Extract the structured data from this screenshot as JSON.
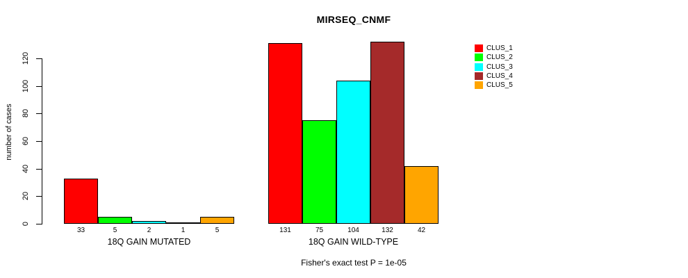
{
  "title": "MIRSEQ_CNMF",
  "chart_data": {
    "type": "bar",
    "title": "MIRSEQ_CNMF",
    "ylabel": "number of cases",
    "xlabel": "",
    "ylim": [
      0,
      132
    ],
    "yticks": [
      0,
      20,
      40,
      60,
      80,
      100,
      120
    ],
    "grid": false,
    "legend_position": "right",
    "series": [
      {
        "name": "CLUS_1",
        "color": "#FF0000",
        "values": [
          33,
          131
        ]
      },
      {
        "name": "CLUS_2",
        "color": "#00FF00",
        "values": [
          5,
          75
        ]
      },
      {
        "name": "CLUS_3",
        "color": "#00FFFF",
        "values": [
          2,
          104
        ]
      },
      {
        "name": "CLUS_4",
        "color": "#A52A2A",
        "values": [
          1,
          132
        ]
      },
      {
        "name": "CLUS_5",
        "color": "#FFA500",
        "values": [
          5,
          42
        ]
      }
    ],
    "groups": [
      {
        "label": "18Q GAIN MUTATED",
        "values": [
          33,
          5,
          2,
          1,
          5
        ]
      },
      {
        "label": "18Q GAIN WILD-TYPE",
        "values": [
          131,
          75,
          104,
          132,
          42
        ]
      }
    ],
    "value_labels_shown": true,
    "annotation": "Fisher's exact test P = 1e-05"
  },
  "legend": {
    "entries": [
      {
        "label": "CLUS_1",
        "color": "#FF0000"
      },
      {
        "label": "CLUS_2",
        "color": "#00FF00"
      },
      {
        "label": "CLUS_3",
        "color": "#00FFFF"
      },
      {
        "label": "CLUS_4",
        "color": "#A52A2A"
      },
      {
        "label": "CLUS_5",
        "color": "#FFA500"
      }
    ]
  },
  "colors": {
    "background": "#FFFFFF",
    "axis": "#000000",
    "text": "#000000",
    "bar_border": "#000000"
  }
}
